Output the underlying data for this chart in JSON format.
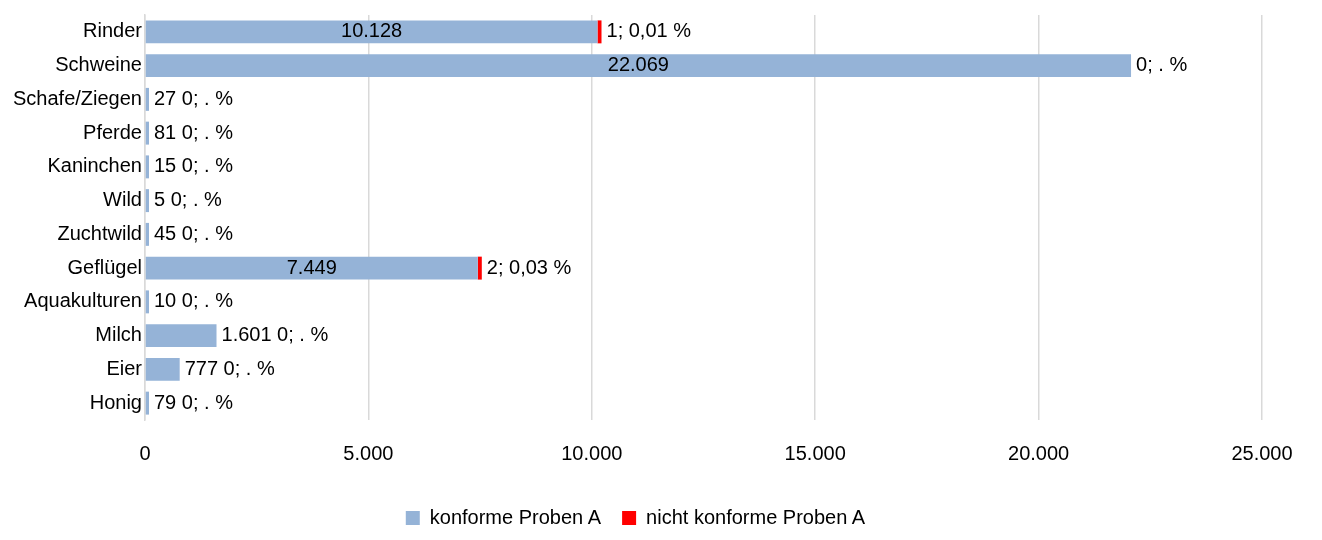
{
  "chart_data": {
    "type": "bar",
    "orientation": "horizontal",
    "stacked": true,
    "categories": [
      "Rinder",
      "Schweine",
      "Schafe/Ziegen",
      "Pferde",
      "Kaninchen",
      "Wild",
      "Zuchtwild",
      "Geflügel",
      "Aquakulturen",
      "Milch",
      "Eier",
      "Honig"
    ],
    "series": [
      {
        "name": "konforme Proben A",
        "color": "#95b3d7",
        "values": [
          10128,
          22069,
          27,
          81,
          15,
          5,
          45,
          7449,
          10,
          1601,
          777,
          79
        ],
        "value_labels": [
          "10.128",
          "22.069",
          "27",
          "81",
          "15",
          "5",
          "45",
          "7.449",
          "10",
          "1.601",
          "777",
          "79"
        ]
      },
      {
        "name": "nicht konforme Proben A",
        "color": "#ff0000",
        "values": [
          1,
          0,
          0,
          0,
          0,
          0,
          0,
          2,
          0,
          0,
          0,
          0
        ],
        "value_labels": [
          "1; 0,01 %",
          "0; . %",
          "0; . %",
          "0; . %",
          "0; . %",
          "0; . %",
          "0; . %",
          "2; 0,03 %",
          "0; . %",
          "0; . %",
          "0; . %",
          "0; . %"
        ]
      }
    ],
    "xlim": [
      0,
      25000
    ],
    "xticks": [
      0,
      {
        "value": 5000,
        "label": "5.000"
      },
      {
        "value": 10000,
        "label": "10.000"
      },
      {
        "value": 15000,
        "label": "15.000"
      },
      {
        "value": 20000,
        "label": "20.000"
      },
      {
        "value": 25000,
        "label": "25.000"
      }
    ],
    "grid": "x",
    "legend": "bottom"
  }
}
